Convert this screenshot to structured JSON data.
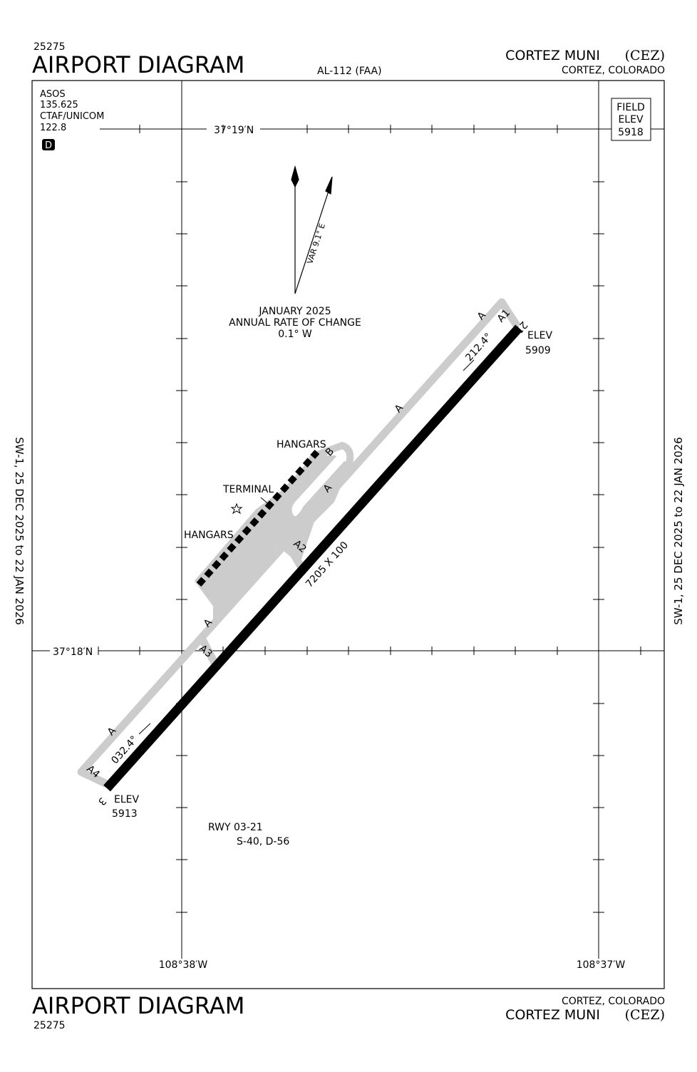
{
  "header": {
    "id": "25275",
    "title": "AIRPORT DIAGRAM",
    "procedure": "AL-112 (FAA)",
    "airport": "CORTEZ MUNI",
    "airport_code": "(CEZ)",
    "location": "CORTEZ, COLORADO"
  },
  "comms": [
    "ASOS",
    "135.625",
    "CTAF/UNICOM",
    "122.8"
  ],
  "badge": "D",
  "field_elev": {
    "line1": "FIELD",
    "line2": "ELEV",
    "value": "5918"
  },
  "coordinates": {
    "lat_north": "37°19′N",
    "lat_south": "37°18′N",
    "lon_west": "108°38′W",
    "lon_east": "108°37′W"
  },
  "magnetic": {
    "variation": "VAR 9.1° E",
    "date": "JANUARY 2025",
    "rate_label": "ANNUAL RATE OF CHANGE",
    "rate": "0.1° W"
  },
  "runway": {
    "end_north": "21",
    "elev_north_label": "ELEV",
    "elev_north": "5909",
    "heading_north": "212.4°",
    "end_south": "3",
    "elev_south_label": "ELEV",
    "elev_south": "5913",
    "heading_south": "032.4°",
    "dimensions": "7205 X 100",
    "name": "RWY 03-21",
    "strength": "S-40, D-56"
  },
  "taxiway_labels": [
    "A",
    "A1",
    "A",
    "A",
    "B",
    "A2",
    "A",
    "A3",
    "A",
    "A4"
  ],
  "buildings": {
    "hangars_north": "HANGARS",
    "terminal": "TERMINAL",
    "hangars_south": "HANGARS"
  },
  "validity": "SW-1,  25 DEC 2025  to  22 JAN 2026"
}
